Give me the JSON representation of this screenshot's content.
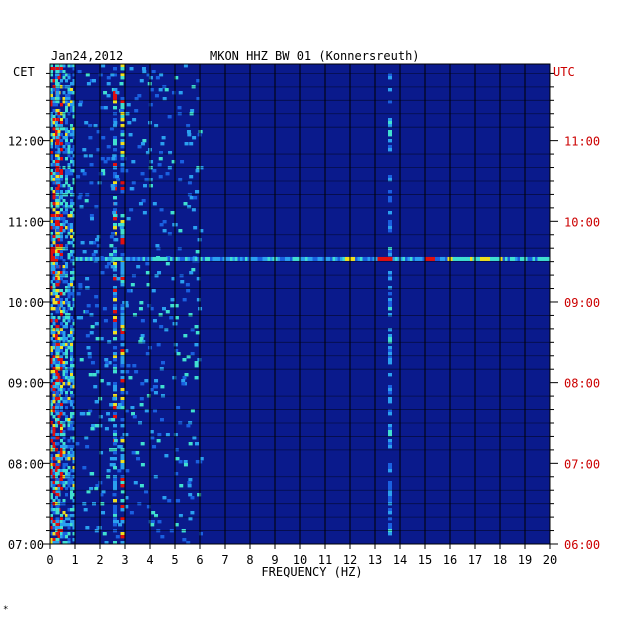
{
  "header": {
    "date": "Jan24,2012",
    "station": "MKON HHZ BW 01 (Konnersreuth)"
  },
  "footer_mark": "*",
  "colors": {
    "background_field": "#0a1a8c",
    "left_axis_text": "#000000",
    "right_axis_text": "#cc0000",
    "grid": "#000000"
  },
  "chart_data": {
    "type": "heatmap",
    "title": "MKON HHZ BW 01 (Konnersreuth)",
    "xlabel": "FREQUENCY (HZ)",
    "x_ticks": [
      0,
      1,
      2,
      3,
      4,
      5,
      6,
      7,
      8,
      9,
      10,
      11,
      12,
      13,
      14,
      15,
      16,
      17,
      18,
      19,
      20
    ],
    "xlim": [
      0,
      20
    ],
    "y_left_unit": "CET",
    "y_right_unit": "UTC",
    "y_left_ticks": [
      "07:00",
      "08:00",
      "09:00",
      "10:00",
      "11:00",
      "12:00"
    ],
    "y_right_ticks": [
      "06:00",
      "07:00",
      "08:00",
      "09:00",
      "10:00",
      "11:00"
    ],
    "y_range_cet_hours": [
      7.0,
      12.95
    ],
    "persistent_lines_hz": [
      0.3,
      2.6,
      2.9,
      13.6
    ],
    "notable_event": {
      "time_cet": "10:32",
      "freq_range_hz": [
        1.0,
        20.0
      ]
    }
  }
}
